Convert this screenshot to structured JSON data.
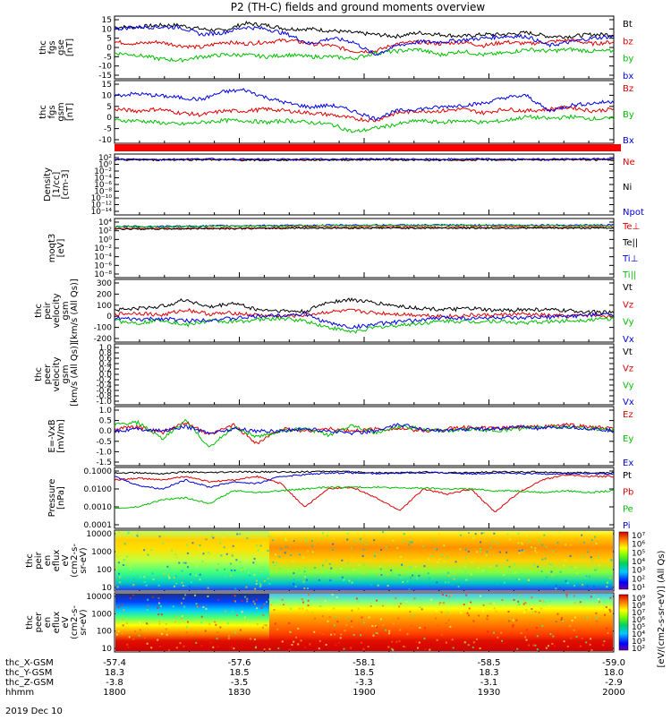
{
  "title": "P2 (TH-C) fields and ground moments overview",
  "date": "2019 Dec 10",
  "colors": {
    "black": "#000000",
    "red": "#e00000",
    "green": "#00c000",
    "blue": "#0000e0"
  },
  "chart_data": [
    {
      "type": "line",
      "panel": "fgs-gse",
      "ylabel": [
        "thc",
        "fgs",
        "gse",
        "[nT]"
      ],
      "yticks": [
        "15",
        "10",
        "5",
        "0",
        "-5",
        "-10",
        "-15"
      ],
      "ylim": [
        -15,
        15
      ],
      "series": [
        {
          "name": "Bt",
          "color": "black",
          "values": [
            11,
            11,
            12,
            12,
            10,
            9,
            13,
            12,
            10,
            10,
            9,
            8,
            7,
            6,
            8,
            7,
            6,
            7,
            7,
            8,
            6,
            6,
            7,
            7
          ]
        },
        {
          "name": "bz",
          "color": "red",
          "values": [
            3,
            2,
            3,
            1,
            0,
            3,
            2,
            3,
            4,
            2,
            1,
            -2,
            -2,
            2,
            3,
            2,
            3,
            1,
            3,
            2,
            3,
            4,
            2,
            3
          ]
        },
        {
          "name": "by",
          "color": "green",
          "values": [
            -3,
            -4,
            -6,
            -7,
            -5,
            -4,
            -4,
            -5,
            -4,
            -5,
            -5,
            -6,
            -3,
            -2,
            -1,
            -4,
            -2,
            -4,
            -3,
            -1,
            -2,
            -1,
            -2,
            -2
          ]
        },
        {
          "name": "bx",
          "color": "blue",
          "values": [
            10,
            11,
            11,
            11,
            7,
            8,
            11,
            10,
            7,
            2,
            5,
            3,
            -4,
            1,
            3,
            3,
            4,
            5,
            6,
            6,
            1,
            3,
            5,
            6
          ]
        }
      ]
    },
    {
      "type": "line",
      "panel": "fgs-gsm",
      "ylabel": [
        "thc",
        "fgs",
        "gsm",
        "[nT]"
      ],
      "yticks": [
        "15",
        "10",
        "5",
        "0",
        "-5",
        "-10"
      ],
      "ylim": [
        -13,
        16
      ],
      "series": [
        {
          "name": "Bz",
          "color": "red",
          "values": [
            3,
            2,
            3,
            1,
            0,
            2,
            2,
            3,
            2,
            1,
            0,
            -2,
            -3,
            1,
            2,
            2,
            3,
            1,
            3,
            2,
            3,
            4,
            2,
            3
          ]
        },
        {
          "name": "By",
          "color": "green",
          "values": [
            -3,
            -3,
            -4,
            -5,
            -4,
            -3,
            -3,
            -4,
            -3,
            -4,
            -5,
            -9,
            -7,
            -5,
            -3,
            -4,
            -3,
            -4,
            -3,
            -1,
            -2,
            -1,
            -2,
            -2
          ]
        },
        {
          "name": "Bx",
          "color": "blue",
          "values": [
            10,
            11,
            10,
            9,
            8,
            12,
            13,
            9,
            6,
            4,
            5,
            2,
            -2,
            2,
            3,
            4,
            5,
            6,
            9,
            10,
            2,
            5,
            6,
            7
          ]
        }
      ]
    },
    {
      "type": "line",
      "panel": "density",
      "ylabel": [
        "Density",
        "[1/cc]",
        "[cm-3]"
      ],
      "yticks": [
        "10²",
        "10⁰",
        "10⁻²",
        "10⁻⁴",
        "10⁻⁶",
        "10⁻⁸",
        "10⁻¹⁰",
        "10⁻¹²",
        "10⁻¹⁴"
      ],
      "ylim": [
        -14,
        2
      ],
      "log": true,
      "series": [
        {
          "name": "Ne",
          "color": "red",
          "values": [
            1.4,
            1.4,
            1.5,
            1.3,
            1.4,
            1.4,
            1.5,
            1.3,
            1.4,
            1.4,
            1.5,
            1.4
          ]
        },
        {
          "name": "Ni",
          "color": "black",
          "values": [
            1.3,
            1.3,
            1.4,
            1.2,
            1.3,
            1.3,
            1.4,
            1.2,
            1.3,
            1.3,
            1.4,
            1.3
          ]
        },
        {
          "name": "Npot",
          "color": "blue",
          "values": [
            1.5,
            1.5,
            1.6,
            1.5,
            1.5,
            1.6,
            1.6,
            1.5,
            1.6,
            1.5,
            1.6,
            1.6
          ]
        }
      ]
    },
    {
      "type": "line",
      "panel": "temperature",
      "ylabel": [
        "moqt3",
        "[eV]"
      ],
      "yticks": [
        "10⁴",
        "10²",
        "10⁰",
        "10⁻²",
        "10⁻⁴",
        "10⁻⁶",
        "10⁻⁸"
      ],
      "ylim": [
        -8,
        4
      ],
      "log": true,
      "series": [
        {
          "name": "Te⊥",
          "color": "red",
          "values": [
            2.6,
            2.5,
            2.7,
            2.6,
            2.8,
            2.8,
            2.9,
            2.8,
            2.8,
            2.9,
            2.8,
            2.9
          ]
        },
        {
          "name": "Te||",
          "color": "black",
          "values": [
            2.4,
            2.4,
            2.5,
            2.5,
            2.6,
            2.6,
            2.6,
            2.6,
            2.6,
            2.6,
            2.6,
            2.6
          ]
        },
        {
          "name": "Ti⊥",
          "color": "blue",
          "values": [
            3.0,
            3.0,
            3.1,
            3.2,
            3.2,
            3.3,
            3.3,
            3.3,
            3.3,
            3.3,
            3.3,
            3.3
          ]
        },
        {
          "name": "Ti||",
          "color": "green",
          "values": [
            2.9,
            2.9,
            3.0,
            3.1,
            3.1,
            3.2,
            3.2,
            3.2,
            3.2,
            3.2,
            3.2,
            3.2
          ]
        }
      ]
    },
    {
      "type": "line",
      "panel": "peir-velocity",
      "ylabel": [
        "thc",
        "peir",
        "velocity",
        "gsm",
        "[km/s (All Qs)]"
      ],
      "yticks": [
        "300",
        "200",
        "100",
        "0",
        "-100",
        "-200"
      ],
      "ylim": [
        -200,
        300
      ],
      "series": [
        {
          "name": "Vt",
          "color": "black",
          "values": [
            60,
            70,
            90,
            150,
            80,
            120,
            60,
            50,
            40,
            130,
            150,
            120,
            90,
            70,
            60,
            70,
            50,
            60,
            60,
            50,
            40,
            30
          ]
        },
        {
          "name": "Vz",
          "color": "red",
          "values": [
            20,
            30,
            10,
            60,
            20,
            30,
            10,
            0,
            10,
            40,
            50,
            30,
            20,
            10,
            0,
            10,
            10,
            20,
            10,
            0,
            10,
            0
          ]
        },
        {
          "name": "Vy",
          "color": "green",
          "values": [
            -40,
            -60,
            -30,
            -80,
            -40,
            -50,
            -30,
            -20,
            -40,
            -100,
            -140,
            -100,
            -80,
            -60,
            -40,
            -50,
            -40,
            -60,
            -50,
            -40,
            -30,
            -20
          ]
        },
        {
          "name": "Vx",
          "color": "blue",
          "values": [
            -20,
            -30,
            -20,
            -40,
            -30,
            -20,
            0,
            10,
            20,
            -60,
            -100,
            -70,
            -50,
            -30,
            -10,
            -20,
            -10,
            -20,
            -10,
            0,
            10,
            20
          ]
        }
      ]
    },
    {
      "type": "line",
      "panel": "peer-velocity",
      "ylabel": [
        "thc",
        "peer",
        "velocity",
        "gsm",
        "[km/s (All Qs)]"
      ],
      "yticks": [
        "1.0",
        "0.8",
        "0.6",
        "0.4",
        "0.2",
        "0.0",
        "-0.2",
        "-0.4",
        "-0.6",
        "-0.8",
        "-1.0"
      ],
      "ylim": [
        -1,
        1
      ],
      "series": [
        {
          "name": "Vt",
          "color": "black",
          "values": []
        },
        {
          "name": "Vz",
          "color": "red",
          "values": []
        },
        {
          "name": "Vy",
          "color": "green",
          "values": []
        },
        {
          "name": "Vx",
          "color": "blue",
          "values": []
        }
      ]
    },
    {
      "type": "line",
      "panel": "efield",
      "ylabel": [
        "E=-VxB",
        "[mV/m]"
      ],
      "yticks": [
        "1.0",
        "0.5",
        "0.0",
        "-0.5",
        "-1.0",
        "-1.5"
      ],
      "ylim": [
        -1.5,
        1.0
      ],
      "series": [
        {
          "name": "Ez",
          "color": "red",
          "values": [
            0.1,
            0.2,
            -0.1,
            0.4,
            -0.2,
            0.3,
            -0.6,
            0.1,
            0.0,
            0.1,
            0.0,
            0.1,
            0.1,
            0.0,
            0.1,
            0.2,
            0.1,
            0.2,
            0.2,
            0.3,
            0.2,
            0.1
          ]
        },
        {
          "name": "Ey",
          "color": "green",
          "values": [
            0.3,
            0.4,
            -0.4,
            0.5,
            -0.8,
            0.2,
            -0.3,
            0.0,
            0.1,
            -0.2,
            0.3,
            -0.1,
            0.2,
            0.1,
            0.0,
            0.1,
            0.0,
            0.1,
            0.2,
            0.2,
            0.1,
            0.1
          ]
        },
        {
          "name": "Ex",
          "color": "blue",
          "values": [
            0.0,
            0.1,
            0.0,
            0.2,
            -0.1,
            0.1,
            0.0,
            0.0,
            0.1,
            0.0,
            -0.1,
            0.0,
            0.3,
            0.1,
            0.0,
            0.1,
            0.1,
            0.2,
            0.1,
            0.2,
            0.1,
            0.0
          ]
        }
      ]
    },
    {
      "type": "line",
      "panel": "pressure",
      "ylabel": [
        "Pressure",
        "[nPa]"
      ],
      "yticks": [
        "0.1000",
        "0.0100",
        "0.0010",
        "0.0001"
      ],
      "ylim": [
        -4,
        -1
      ],
      "log": true,
      "series": [
        {
          "name": "Pt",
          "color": "black",
          "values": [
            -1.1,
            -1.1,
            -1.15,
            -1.05,
            -1.1,
            -1.05,
            -1.05,
            -1.05,
            -1.05,
            -1.0,
            -1.05,
            -1.1,
            -1.1,
            -1.05,
            -1.1,
            -1.1,
            -1.05,
            -1.05,
            -1.05,
            -1.1,
            -1.1,
            -1.1
          ]
        },
        {
          "name": "Pb",
          "color": "red",
          "values": [
            -1.5,
            -1.4,
            -1.5,
            -1.3,
            -1.6,
            -1.5,
            -1.3,
            -1.7,
            -3.0,
            -2.0,
            -1.9,
            -2.5,
            -3.2,
            -2.0,
            -2.3,
            -2.0,
            -3.3,
            -2.2,
            -1.5,
            -1.2,
            -1.3,
            -1.3
          ]
        },
        {
          "name": "Pe",
          "color": "green",
          "values": [
            -3.1,
            -3.0,
            -2.6,
            -2.5,
            -2.8,
            -2.1,
            -2.2,
            -2.1,
            -2.0,
            -1.9,
            -1.9,
            -1.9,
            -1.95,
            -1.95,
            -2.0,
            -2.0,
            -2.1,
            -2.1,
            -2.2,
            -2.1,
            -2.2,
            -2.1
          ]
        },
        {
          "name": "Pi",
          "color": "blue",
          "values": [
            -1.3,
            -1.8,
            -2.0,
            -1.5,
            -1.9,
            -1.6,
            -1.7,
            -1.3,
            -1.2,
            -1.1,
            -1.1,
            -1.15,
            -1.1,
            -1.1,
            -1.1,
            -1.15,
            -1.1,
            -1.15,
            -1.15,
            -1.15,
            -1.15,
            -1.15
          ]
        }
      ]
    },
    {
      "type": "heatmap",
      "panel": "peir-eflux",
      "ylabel": [
        "thc",
        "peir",
        "en",
        "eflux",
        "eV",
        "(cm2-s-",
        "sr-eV)"
      ],
      "yticks": [
        "10000",
        "1000",
        "100",
        "10"
      ],
      "colorbar_label": "[eV/(cm2-s-sr-eV)] (All Qs)",
      "colorbar_ticks": [
        "10⁷",
        "10⁶",
        "10⁵",
        "10⁴",
        "10³",
        "10²",
        "10¹"
      ]
    },
    {
      "type": "heatmap",
      "panel": "peer-eflux",
      "ylabel": [
        "thc",
        "peer",
        "en",
        "eflux",
        "eV",
        "(cm2-s-",
        "sr-eV)"
      ],
      "yticks": [
        "10000",
        "1000",
        "100",
        "10"
      ],
      "colorbar_label": "[eV/(cm2-s-sr-eV)]",
      "colorbar_ticks": [
        "10⁹",
        "10⁸",
        "10⁷",
        "10⁶",
        "10⁵",
        "10⁴",
        "10³",
        "10²"
      ]
    }
  ],
  "xaxis": {
    "row_labels": [
      "thc_X-GSM",
      "thc_Y-GSM",
      "thc_Z-GSM",
      "hhmm"
    ],
    "columns": [
      [
        "-57.4",
        "18.3",
        "-3.8",
        "1800"
      ],
      [
        "-57.6",
        "18.5",
        "-3.5",
        "1830"
      ],
      [
        "-58.1",
        "18.5",
        "-3.3",
        "1900"
      ],
      [
        "-58.5",
        "18.3",
        "-3.1",
        "1930"
      ],
      [
        "-59.0",
        "18.0",
        "-2.9",
        "2000"
      ]
    ]
  }
}
